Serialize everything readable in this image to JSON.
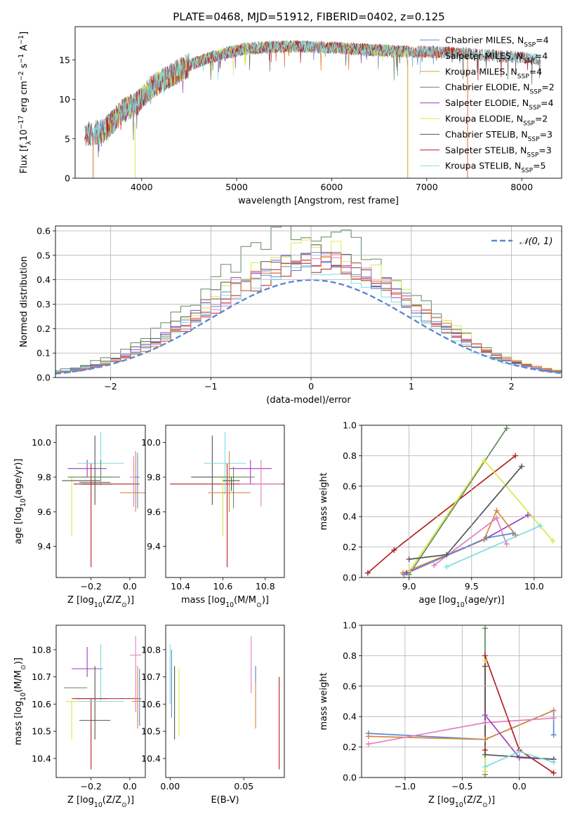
{
  "figure": {
    "title": "PLATE=0468, MJD=51912, FIBERID=0402, z=0.125",
    "colors": {
      "chab_miles": "#5b88d1",
      "salp_miles": "#e06d2e",
      "krou_miles": "#d9a73b",
      "chab_elodie": "#5e8a5e",
      "salp_elodie": "#9b3fbf",
      "krou_elodie": "#d9e84d",
      "chab_stelib": "#555555",
      "salp_stelib": "#b22222",
      "krou_stelib": "#7fdde0",
      "extra_pink": "#e37fbf",
      "extra_orange": "#d9873b"
    }
  },
  "chart_data": [
    {
      "id": "spectrum",
      "type": "line",
      "xlabel": "wavelength [Angstrom, rest frame]",
      "ylabel_parts": [
        "Flux [f",
        "λ",
        "10",
        "−17",
        " erg cm",
        "−2",
        " s",
        "−1",
        " A",
        "−1",
        "]"
      ],
      "xlim": [
        3300,
        8420
      ],
      "ylim": [
        0,
        19.2
      ],
      "xticks": [
        4000,
        5000,
        6000,
        7000,
        8000
      ],
      "yticks": [
        0,
        5,
        10,
        15
      ],
      "grid": false,
      "legend": {
        "placement": "top-right",
        "entries": [
          {
            "base": "Chabrier MILES, N",
            "sub": "SSP",
            "tail": "=4",
            "color_key": "chab_miles"
          },
          {
            "base": "Salpeter MILES, N",
            "sub": "SSP",
            "tail": "=4",
            "color_key": "salp_miles"
          },
          {
            "base": "Kroupa MILES, N",
            "sub": "SSP",
            "tail": "=4",
            "color_key": "krou_miles"
          },
          {
            "base": "Chabrier ELODIE, N",
            "sub": "SSP",
            "tail": "=2",
            "color_key": "chab_elodie"
          },
          {
            "base": "Salpeter ELODIE, N",
            "sub": "SSP",
            "tail": "=4",
            "color_key": "salp_elodie"
          },
          {
            "base": "Kroupa ELODIE, N",
            "sub": "SSP",
            "tail": "=2",
            "color_key": "krou_elodie"
          },
          {
            "base": "Chabrier STELIB, N",
            "sub": "SSP",
            "tail": "=3",
            "color_key": "chab_stelib"
          },
          {
            "base": "Salpeter STELIB, N",
            "sub": "SSP",
            "tail": "=3",
            "color_key": "salp_stelib"
          },
          {
            "base": "Kroupa STELIB, N",
            "sub": "SSP",
            "tail": "=5",
            "color_key": "krou_stelib"
          }
        ]
      },
      "continuum": {
        "x": [
          3400,
          3600,
          3800,
          3950,
          4100,
          4300,
          4500,
          4700,
          4900,
          5100,
          5300,
          5600,
          5900,
          6200,
          6500,
          6800,
          7100,
          7400,
          7700,
          8000,
          8200
        ],
        "y": [
          5.5,
          6.0,
          8.5,
          9.5,
          11.5,
          13.0,
          14.3,
          15.2,
          15.9,
          16.4,
          16.6,
          16.7,
          16.6,
          16.4,
          16.2,
          16.0,
          16.0,
          15.8,
          15.5,
          15.3,
          15.0
        ]
      },
      "spike_lines": [
        {
          "x": 3490,
          "y0": 0,
          "y1": 5.0,
          "color_key": "salp_miles"
        },
        {
          "x": 3930,
          "y0": 0,
          "y1": 7.0,
          "color_key": "krou_elodie"
        },
        {
          "x": 6800,
          "y0": 0,
          "y1": 16.0,
          "color_key": "krou_elodie"
        },
        {
          "x": 6800,
          "y0": 0,
          "y1": 15.0,
          "color_key": "krou_miles"
        },
        {
          "x": 7430,
          "y0": 0,
          "y1": 16.0,
          "color_key": "salp_miles"
        }
      ]
    },
    {
      "id": "residuals",
      "type": "step",
      "xlabel": "(data-model)/error",
      "ylabel": "Normed distribution",
      "xlim": [
        -2.55,
        2.5
      ],
      "ylim": [
        0,
        0.62
      ],
      "xticks": [
        -2,
        -1,
        0,
        1,
        2
      ],
      "yticks": [
        0.0,
        0.1,
        0.2,
        0.3,
        0.4,
        0.5,
        0.6
      ],
      "grid": true,
      "legend": {
        "placement": "top-right",
        "label": "𝒩(0, 1)",
        "color_key": "chab_miles"
      },
      "normal_curve": {
        "mu": 0,
        "sigma": 1
      },
      "bin_width": 0.1,
      "histogram_colors": [
        "chab_elodie",
        "salp_elodie",
        "krou_elodie",
        "chab_stelib",
        "salp_stelib",
        "extra_pink",
        "krou_stelib",
        "chab_miles",
        "salp_miles"
      ],
      "histogram_peaks": [
        0.6,
        0.5,
        0.53,
        0.5,
        0.45,
        0.47,
        0.45,
        0.48,
        0.49
      ]
    },
    {
      "id": "age_vs_Z",
      "type": "errorbar",
      "xlabel_parts": [
        "Z [log",
        "10",
        "(Z/Z",
        "⊙",
        ")]"
      ],
      "ylabel_parts": [
        "age  [log",
        "10",
        "(age/yr)]"
      ],
      "xlim": [
        -0.38,
        0.08
      ],
      "ylim": [
        9.22,
        10.1
      ],
      "xticks": [
        -0.2,
        0.0
      ],
      "yticks": [
        9.4,
        9.6,
        9.8,
        10.0
      ],
      "grid": false,
      "points": [
        {
          "x": -0.3,
          "y": 9.8,
          "xerr": 0.02,
          "ylo": 9.46,
          "yhi": 9.8,
          "color_key": "krou_elodie"
        },
        {
          "x": -0.25,
          "y": 9.78,
          "xerr": 0.1,
          "ylo": 9.78,
          "yhi": 9.78,
          "color_key": "chab_stelib"
        },
        {
          "x": -0.22,
          "y": 9.85,
          "xerr": 0.1,
          "ylo": 9.8,
          "yhi": 9.9,
          "color_key": "salp_elodie"
        },
        {
          "x": -0.2,
          "y": 9.76,
          "xerr": 0.05,
          "ylo": 9.28,
          "yhi": 9.88,
          "color_key": "salp_stelib"
        },
        {
          "x": -0.2,
          "y": 9.8,
          "xerr": 0.12,
          "ylo": 9.8,
          "yhi": 9.8,
          "color_key": "chab_elodie"
        },
        {
          "x": -0.19,
          "y": 9.76,
          "xerr": 0.1,
          "ylo": 9.76,
          "yhi": 9.76,
          "color_key": "salp_stelib"
        },
        {
          "x": -0.15,
          "y": 9.88,
          "xerr": 0.12,
          "ylo": 9.75,
          "yhi": 10.06,
          "color_key": "krou_stelib"
        },
        {
          "x": -0.18,
          "y": 9.77,
          "xerr": 0.08,
          "ylo": 9.64,
          "yhi": 10.04,
          "color_key": "chab_stelib"
        },
        {
          "x": -0.15,
          "y": 9.8,
          "xerr": 0.1,
          "ylo": 9.78,
          "yhi": 9.9,
          "color_key": "chab_elodie"
        },
        {
          "x": -0.1,
          "y": 9.76,
          "xerr": 0.15,
          "ylo": 9.76,
          "yhi": 9.76,
          "color_key": "salp_stelib"
        },
        {
          "x": 0.03,
          "y": 9.71,
          "xerr": 0.08,
          "ylo": 9.6,
          "yhi": 9.95,
          "color_key": "extra_orange"
        },
        {
          "x": 0.02,
          "y": 9.8,
          "xerr": 0.02,
          "ylo": 9.63,
          "yhi": 9.92,
          "color_key": "extra_pink"
        },
        {
          "x": 0.04,
          "y": 9.8,
          "xerr": 0.01,
          "ylo": 9.62,
          "yhi": 9.94,
          "color_key": "chab_miles"
        }
      ]
    },
    {
      "id": "age_vs_mass",
      "type": "errorbar",
      "xlabel_parts": [
        "mass [log",
        "10",
        "(M/M",
        "⊙",
        ")]"
      ],
      "ylabel_parts": [],
      "xlim": [
        10.33,
        10.89
      ],
      "ylim": [
        9.22,
        10.1
      ],
      "xticks": [
        10.4,
        10.6,
        10.8
      ],
      "yticks": [
        9.4,
        9.6,
        9.8,
        10.0
      ],
      "grid": false,
      "points": [
        {
          "x": 10.62,
          "y": 9.76,
          "xerr": 0.27,
          "ylo": 9.28,
          "yhi": 9.88,
          "color_key": "salp_stelib"
        },
        {
          "x": 10.6,
          "y": 9.8,
          "xerr": 0.12,
          "ylo": 9.46,
          "yhi": 9.8,
          "color_key": "krou_elodie"
        },
        {
          "x": 10.55,
          "y": 9.8,
          "xerr": 0.1,
          "ylo": 9.64,
          "yhi": 10.04,
          "color_key": "chab_stelib"
        },
        {
          "x": 10.61,
          "y": 9.88,
          "xerr": 0.1,
          "ylo": 9.7,
          "yhi": 10.06,
          "color_key": "krou_stelib"
        },
        {
          "x": 10.63,
          "y": 9.71,
          "xerr": 0.1,
          "ylo": 9.6,
          "yhi": 9.95,
          "color_key": "extra_orange"
        },
        {
          "x": 10.65,
          "y": 9.8,
          "xerr": 0.1,
          "ylo": 9.62,
          "yhi": 9.86,
          "color_key": "chab_elodie"
        },
        {
          "x": 10.73,
          "y": 9.85,
          "xerr": 0.1,
          "ylo": 9.76,
          "yhi": 9.9,
          "color_key": "salp_elodie"
        },
        {
          "x": 10.78,
          "y": 9.76,
          "xerr": 0.1,
          "ylo": 9.63,
          "yhi": 9.9,
          "color_key": "extra_pink"
        },
        {
          "x": 10.64,
          "y": 9.78,
          "xerr": 0.04,
          "ylo": 9.72,
          "yhi": 9.8,
          "color_key": "chab_stelib"
        }
      ]
    },
    {
      "id": "weight_vs_age",
      "type": "line",
      "xlabel_parts": [
        "age  [log",
        "10",
        "(age/yr)]"
      ],
      "ylabel": "mass weight",
      "xlim": [
        8.62,
        10.22
      ],
      "ylim": [
        0,
        1.0
      ],
      "xticks": [
        9.0,
        9.5,
        10.0
      ],
      "yticks": [
        0.0,
        0.2,
        0.4,
        0.6,
        0.8,
        1.0
      ],
      "grid": true,
      "series": [
        {
          "color_key": "salp_stelib",
          "x": [
            8.67,
            8.88,
            9.85
          ],
          "y": [
            0.03,
            0.18,
            0.8
          ]
        },
        {
          "color_key": "chab_elodie",
          "x": [
            9.0,
            9.78
          ],
          "y": [
            0.02,
            0.98
          ]
        },
        {
          "color_key": "krou_elodie",
          "x": [
            9.0,
            9.6,
            10.15
          ],
          "y": [
            0.04,
            0.77,
            0.24
          ]
        },
        {
          "color_key": "chab_stelib",
          "x": [
            9.0,
            9.3,
            9.9
          ],
          "y": [
            0.12,
            0.15,
            0.73
          ]
        },
        {
          "color_key": "salp_elodie",
          "x": [
            8.98,
            9.6,
            9.95
          ],
          "y": [
            0.03,
            0.25,
            0.41
          ]
        },
        {
          "color_key": "extra_orange",
          "x": [
            8.95,
            9.6,
            9.7,
            9.85
          ],
          "y": [
            0.03,
            0.25,
            0.44,
            0.28
          ]
        },
        {
          "color_key": "extra_pink",
          "x": [
            9.2,
            9.7,
            9.78
          ],
          "y": [
            0.08,
            0.39,
            0.22
          ]
        },
        {
          "color_key": "krou_stelib",
          "x": [
            9.3,
            10.05
          ],
          "y": [
            0.07,
            0.34
          ]
        },
        {
          "color_key": "chab_miles",
          "x": [
            8.96,
            9.62,
            9.83
          ],
          "y": [
            0.02,
            0.26,
            0.29
          ]
        }
      ]
    },
    {
      "id": "mass_vs_Z",
      "type": "errorbar",
      "xlabel_parts": [
        "Z [log",
        "10",
        "(Z/Z",
        "⊙",
        ")]"
      ],
      "ylabel_parts": [
        "mass [log",
        "10",
        "(M/M",
        "⊙",
        ")]"
      ],
      "xlim": [
        -0.38,
        0.08
      ],
      "ylim": [
        10.33,
        10.89
      ],
      "xticks": [
        -0.2,
        0.0
      ],
      "yticks": [
        10.4,
        10.5,
        10.6,
        10.7,
        10.8
      ],
      "grid": false,
      "points": [
        {
          "x": -0.3,
          "y": 10.61,
          "xerr": 0.03,
          "ylo": 10.47,
          "yhi": 10.61,
          "color_key": "krou_elodie"
        },
        {
          "x": -0.28,
          "y": 10.66,
          "xerr": 0.06,
          "ylo": 10.66,
          "yhi": 10.66,
          "color_key": "chab_elodie"
        },
        {
          "x": -0.22,
          "y": 10.73,
          "xerr": 0.08,
          "ylo": 10.7,
          "yhi": 10.81,
          "color_key": "salp_elodie"
        },
        {
          "x": -0.2,
          "y": 10.62,
          "xerr": 0.08,
          "ylo": 10.36,
          "yhi": 10.62,
          "color_key": "salp_stelib"
        },
        {
          "x": -0.18,
          "y": 10.54,
          "xerr": 0.08,
          "ylo": 10.47,
          "yhi": 10.74,
          "color_key": "chab_stelib"
        },
        {
          "x": -0.15,
          "y": 10.61,
          "xerr": 0.12,
          "ylo": 10.61,
          "yhi": 10.82,
          "color_key": "krou_stelib"
        },
        {
          "x": -0.12,
          "y": 10.62,
          "xerr": 0.18,
          "ylo": 10.62,
          "yhi": 10.62,
          "color_key": "salp_stelib"
        },
        {
          "x": 0.03,
          "y": 10.78,
          "xerr": 0.03,
          "ylo": 10.57,
          "yhi": 10.85,
          "color_key": "extra_pink"
        },
        {
          "x": 0.04,
          "y": 10.61,
          "xerr": 0.03,
          "ylo": 10.51,
          "yhi": 10.74,
          "color_key": "extra_orange"
        },
        {
          "x": 0.05,
          "y": 10.62,
          "xerr": 0.01,
          "ylo": 10.52,
          "yhi": 10.73,
          "color_key": "chab_miles"
        }
      ]
    },
    {
      "id": "mass_vs_EBV",
      "type": "errorbar",
      "xlabel": "E(B-V)",
      "xlim": [
        -0.003,
        0.0775
      ],
      "ylim": [
        10.33,
        10.89
      ],
      "xticks": [
        0.0,
        0.05
      ],
      "yticks": [
        10.4,
        10.5,
        10.6,
        10.7,
        10.8
      ],
      "grid": false,
      "points": [
        {
          "x": 0.0,
          "y": 10.7,
          "ylo": 10.6,
          "yhi": 10.82,
          "color_key": "krou_stelib"
        },
        {
          "x": 0.001,
          "y": 10.65,
          "ylo": 10.55,
          "yhi": 10.8,
          "color_key": "chab_miles"
        },
        {
          "x": 0.003,
          "y": 10.6,
          "ylo": 10.47,
          "yhi": 10.74,
          "color_key": "chab_stelib"
        },
        {
          "x": 0.006,
          "y": 10.6,
          "ylo": 10.48,
          "yhi": 10.73,
          "color_key": "krou_elodie"
        },
        {
          "x": 0.055,
          "y": 10.75,
          "ylo": 10.64,
          "yhi": 10.85,
          "color_key": "extra_pink"
        },
        {
          "x": 0.058,
          "y": 10.62,
          "ylo": 10.51,
          "yhi": 10.74,
          "color_key": "extra_orange"
        },
        {
          "x": 0.058,
          "y": 10.7,
          "ylo": 10.68,
          "yhi": 10.74,
          "color_key": "chab_miles"
        },
        {
          "x": 0.074,
          "y": 10.55,
          "ylo": 10.36,
          "yhi": 10.7,
          "color_key": "salp_stelib"
        }
      ]
    },
    {
      "id": "weight_vs_Z",
      "type": "line",
      "xlabel_parts": [
        "Z [log",
        "10",
        "(Z/Z",
        "⊙",
        ")]"
      ],
      "ylabel": "mass weight",
      "xlim": [
        -1.38,
        0.37
      ],
      "ylim": [
        0,
        1.0
      ],
      "xticks": [
        -1.0,
        -0.5,
        0.0
      ],
      "yticks": [
        0.0,
        0.2,
        0.4,
        0.6,
        0.8,
        1.0
      ],
      "grid": true,
      "series": [
        {
          "color_key": "chab_miles",
          "x": [
            -1.32,
            -0.3,
            0.3,
            0.3
          ],
          "y": [
            0.29,
            0.25,
            0.44,
            0.28
          ]
        },
        {
          "color_key": "extra_orange",
          "x": [
            -1.32,
            -0.3,
            0.3
          ],
          "y": [
            0.27,
            0.25,
            0.44
          ]
        },
        {
          "color_key": "extra_pink",
          "x": [
            -1.32,
            -0.3,
            0.3
          ],
          "y": [
            0.22,
            0.36,
            0.39
          ]
        },
        {
          "color_key": "chab_elodie",
          "x": [
            -0.3,
            -0.3
          ],
          "y": [
            0.02,
            0.98
          ]
        },
        {
          "color_key": "krou_elodie",
          "x": [
            -0.3,
            -0.3
          ],
          "y": [
            0.77,
            0.04
          ]
        },
        {
          "color_key": "salp_stelib",
          "x": [
            -0.3,
            -0.3,
            0.0,
            0.3
          ],
          "y": [
            0.18,
            0.8,
            0.18,
            0.03
          ]
        },
        {
          "color_key": "salp_elodie",
          "x": [
            -0.3,
            0.0,
            0.3
          ],
          "y": [
            0.41,
            0.13,
            0.12
          ]
        },
        {
          "color_key": "chab_stelib",
          "x": [
            -0.3,
            -0.3,
            0.3
          ],
          "y": [
            0.73,
            0.15,
            0.12
          ]
        },
        {
          "color_key": "krou_stelib",
          "x": [
            -0.3,
            0.0,
            0.3
          ],
          "y": [
            0.07,
            0.17,
            0.1
          ]
        }
      ]
    }
  ]
}
